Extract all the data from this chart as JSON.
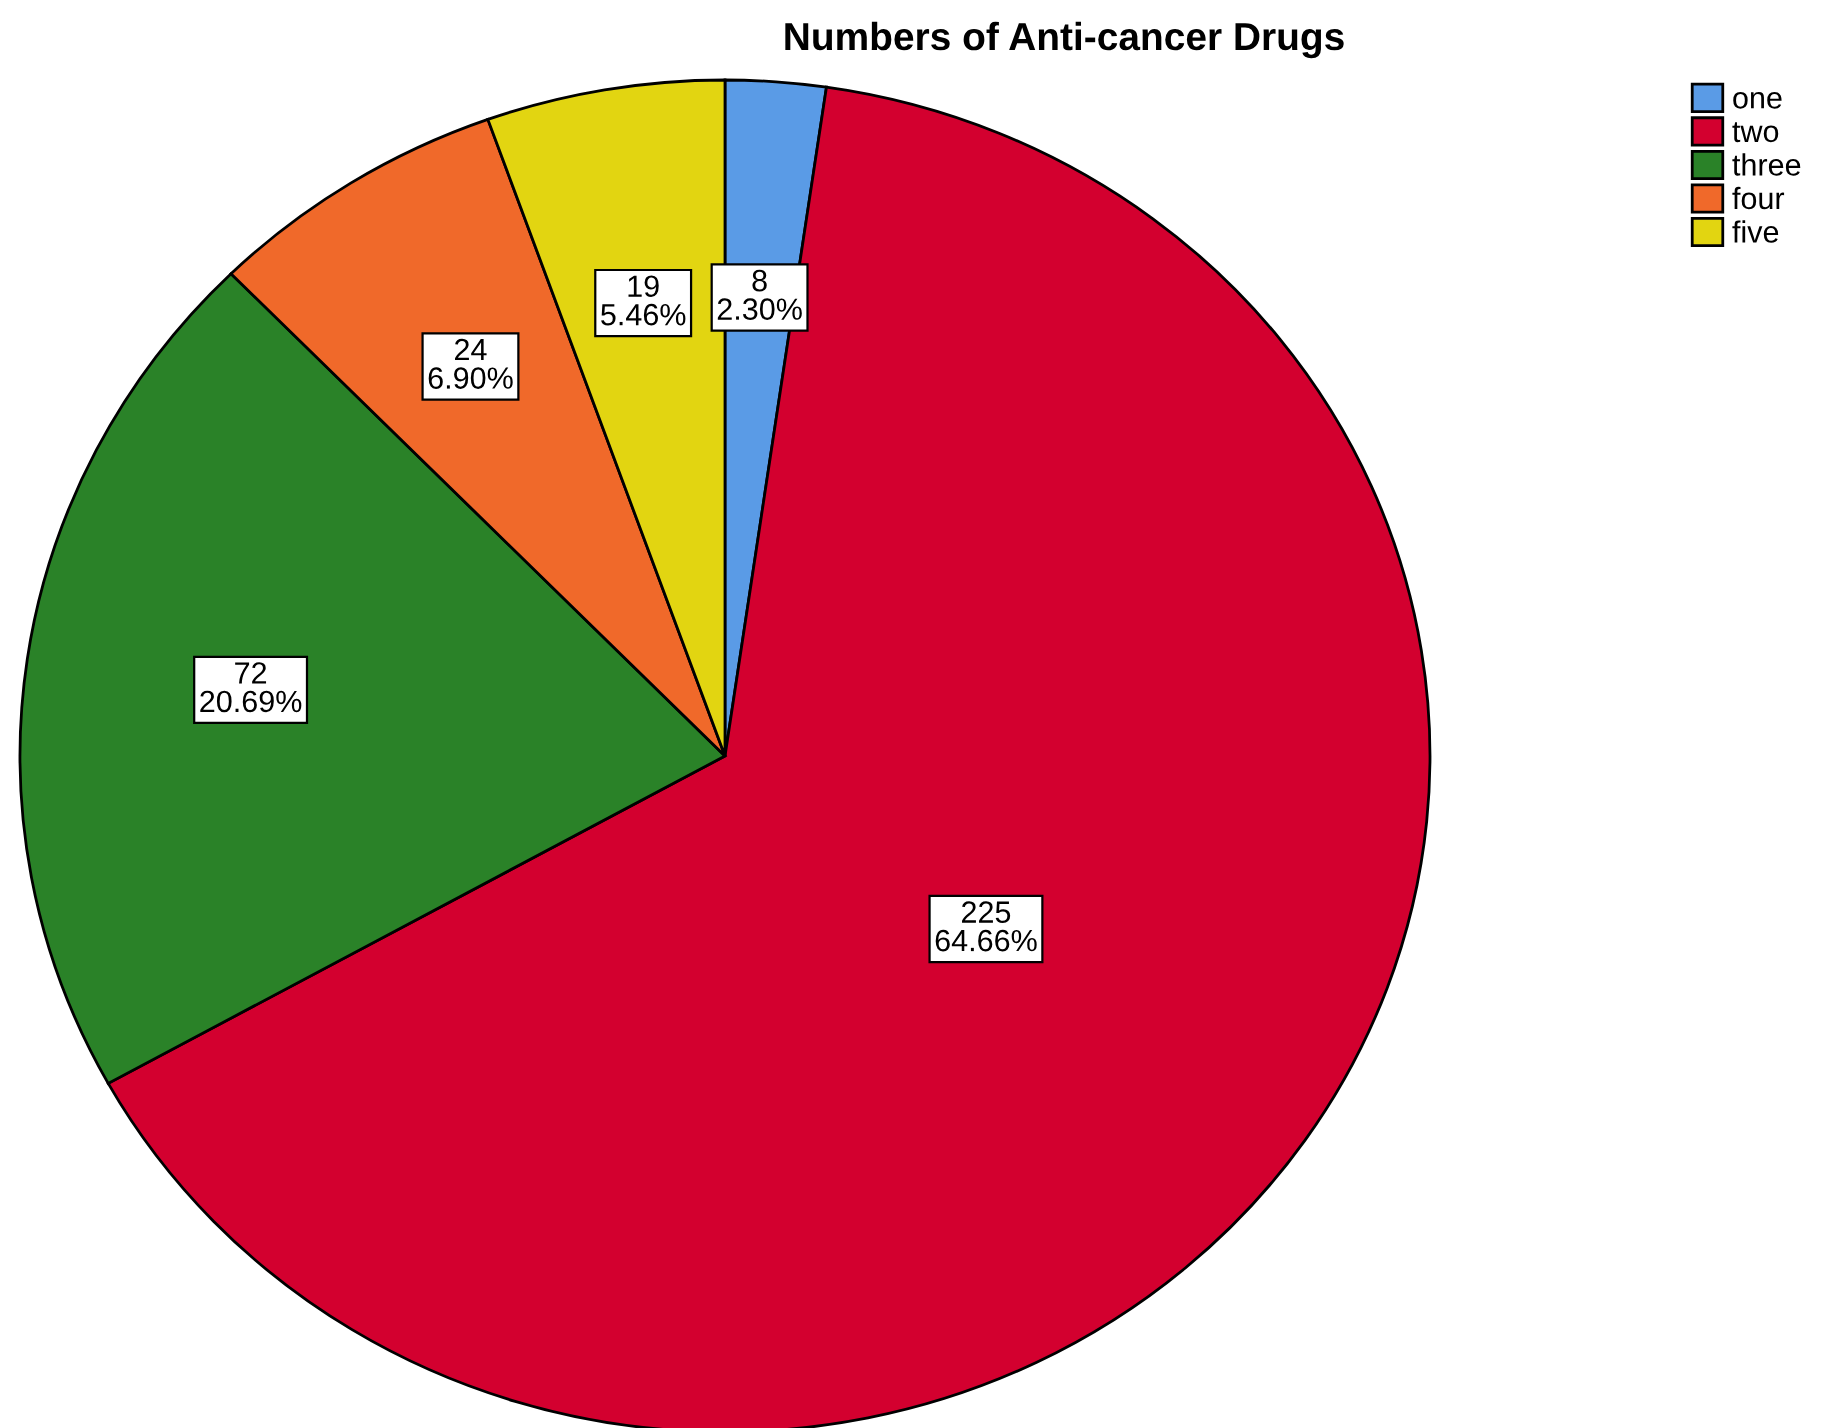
{
  "chart_data": {
    "type": "pie",
    "title": "Numbers of Anti-cancer Drugs",
    "categories": [
      "one",
      "two",
      "three",
      "four",
      "five"
    ],
    "values": [
      8,
      225,
      72,
      24,
      19
    ],
    "colors": [
      "#5a9be6",
      "#d3002f",
      "#2a8228",
      "#f0692a",
      "#e2d511"
    ],
    "value_labels": [
      "8\n2.30%",
      "225\n64.66%",
      "72\n20.69%",
      "24\n6.90%",
      "19\n5.46%"
    ],
    "legend": "top right"
  }
}
